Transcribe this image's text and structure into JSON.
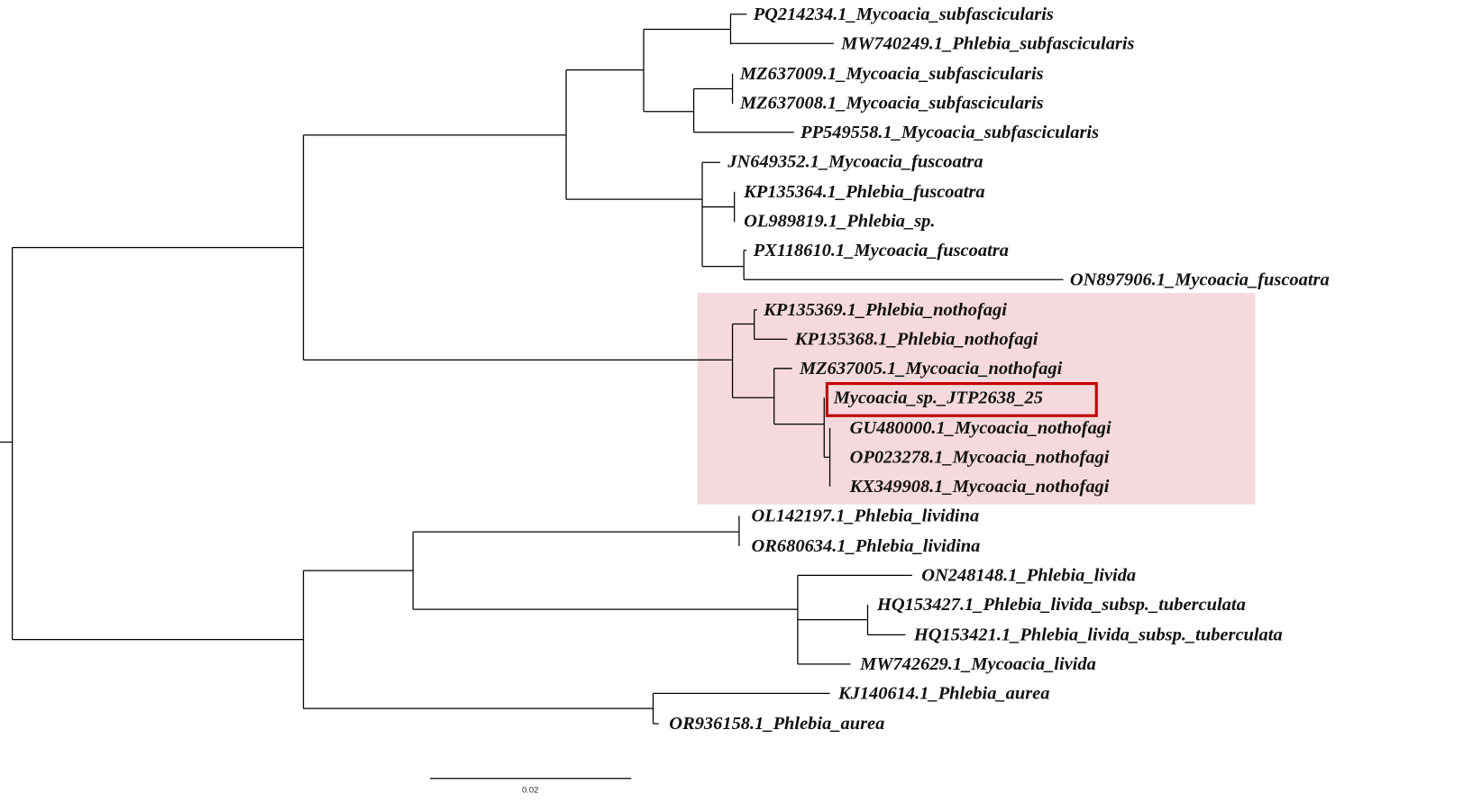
{
  "colors": {
    "highlight_fill": "#f5d9dc",
    "highlight_border": "#c00000",
    "branch": "#000000"
  },
  "taxa": [
    "PQ214234.1_Mycoacia_subfascicularis",
    "MW740249.1_Phlebia_subfascicularis",
    "MZ637009.1_Mycoacia_subfascicularis",
    "MZ637008.1_Mycoacia_subfascicularis",
    "PP549558.1_Mycoacia_subfascicularis",
    "JN649352.1_Mycoacia_fuscoatra",
    "KP135364.1_Phlebia_fuscoatra",
    "OL989819.1_Phlebia_sp.",
    "PX118610.1_Mycoacia_fuscoatra",
    "ON897906.1_Mycoacia_fuscoatra",
    "KP135369.1_Phlebia_nothofagi",
    "KP135368.1_Phlebia_nothofagi",
    "MZ637005.1_Mycoacia_nothofagi",
    "Mycoacia_sp._JTP2638_25",
    "GU480000.1_Mycoacia_nothofagi",
    "OP023278.1_Mycoacia_nothofagi",
    "KX349908.1_Mycoacia_nothofagi",
    "OL142197.1_Phlebia_lividina",
    "OR680634.1_Phlebia_lividina",
    "ON248148.1_Phlebia_livida",
    "HQ153427.1_Phlebia_livida_subsp._tuberculata",
    "HQ153421.1_Phlebia_livida_subsp._tuberculata",
    "MW742629.1_Mycoacia_livida",
    "KJ140614.1_Phlebia_aurea",
    "OR936158.1_Phlebia_aurea"
  ],
  "highlighted_taxon": "Mycoacia_sp._JTP2638_25",
  "scale_bar": {
    "label": "0.02"
  }
}
